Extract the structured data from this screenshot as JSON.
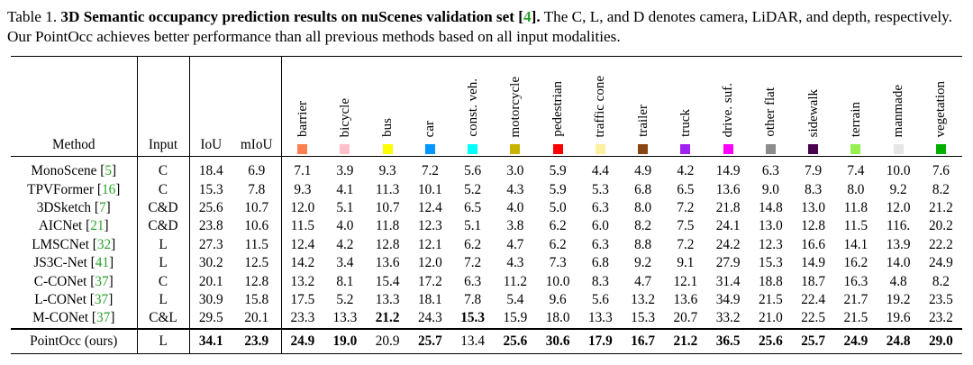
{
  "caption": {
    "prefix": "Table 1. ",
    "bold": "3D Semantic occupancy prediction results on nuScenes validation set ",
    "bold_cite": "4",
    "rest": " The C, L, and D denotes camera, LiDAR, and depth, respectively. Our PointOcc achieves better performance than all previous methods based on all input modalities."
  },
  "headers": {
    "method": "Method",
    "input": "Input",
    "iou": "IoU",
    "miou": "mIoU"
  },
  "classes": [
    {
      "name": "barrier",
      "color": "#ff7f50"
    },
    {
      "name": "bicycle",
      "color": "#ffc0cb"
    },
    {
      "name": "bus",
      "color": "#ffff00"
    },
    {
      "name": "car",
      "color": "#0096ff"
    },
    {
      "name": "const. veh.",
      "color": "#00ffff"
    },
    {
      "name": "motorcycle",
      "color": "#c8b400"
    },
    {
      "name": "pedestrian",
      "color": "#ff0000"
    },
    {
      "name": "traffic cone",
      "color": "#fff0a0"
    },
    {
      "name": "trailer",
      "color": "#8b4513"
    },
    {
      "name": "truck",
      "color": "#a020f0"
    },
    {
      "name": "drive. suf.",
      "color": "#ff00ff"
    },
    {
      "name": "other flat",
      "color": "#8c8c8c"
    },
    {
      "name": "sidewalk",
      "color": "#4b0050"
    },
    {
      "name": "terrain",
      "color": "#96f050"
    },
    {
      "name": "manmade",
      "color": "#e6e6e6"
    },
    {
      "name": "vegetation",
      "color": "#00af00"
    }
  ],
  "rows": [
    {
      "method": "MonoScene",
      "cite": "5",
      "input": "C",
      "vals": [
        "18.4",
        "6.9",
        "7.1",
        "3.9",
        "9.3",
        "7.2",
        "5.6",
        "3.0",
        "5.9",
        "4.4",
        "4.9",
        "4.2",
        "14.9",
        "6.3",
        "7.9",
        "7.4",
        "10.0",
        "7.6"
      ],
      "bold": []
    },
    {
      "method": "TPVFormer",
      "cite": "16",
      "input": "C",
      "vals": [
        "15.3",
        "7.8",
        "9.3",
        "4.1",
        "11.3",
        "10.1",
        "5.2",
        "4.3",
        "5.9",
        "5.3",
        "6.8",
        "6.5",
        "13.6",
        "9.0",
        "8.3",
        "8.0",
        "9.2",
        "8.2"
      ],
      "bold": []
    },
    {
      "method": "3DSketch",
      "cite": "7",
      "input": "C&D",
      "vals": [
        "25.6",
        "10.7",
        "12.0",
        "5.1",
        "10.7",
        "12.4",
        "6.5",
        "4.0",
        "5.0",
        "6.3",
        "8.0",
        "7.2",
        "21.8",
        "14.8",
        "13.0",
        "11.8",
        "12.0",
        "21.2"
      ],
      "bold": []
    },
    {
      "method": "AICNet",
      "cite": "21",
      "input": "C&D",
      "vals": [
        "23.8",
        "10.6",
        "11.5",
        "4.0",
        "11.8",
        "12.3",
        "5.1",
        "3.8",
        "6.2",
        "6.0",
        "8.2",
        "7.5",
        "24.1",
        "13.0",
        "12.8",
        "11.5",
        "116.",
        "20.2"
      ],
      "bold": []
    },
    {
      "method": "LMSCNet",
      "cite": "32",
      "input": "L",
      "vals": [
        "27.3",
        "11.5",
        "12.4",
        "4.2",
        "12.8",
        "12.1",
        "6.2",
        "4.7",
        "6.2",
        "6.3",
        "8.8",
        "7.2",
        "24.2",
        "12.3",
        "16.6",
        "14.1",
        "13.9",
        "22.2"
      ],
      "bold": []
    },
    {
      "method": "JS3C-Net",
      "cite": "41",
      "input": "L",
      "vals": [
        "30.2",
        "12.5",
        "14.2",
        "3.4",
        "13.6",
        "12.0",
        "7.2",
        "4.3",
        "7.3",
        "6.8",
        "9.2",
        "9.1",
        "27.9",
        "15.3",
        "14.9",
        "16.2",
        "14.0",
        "24.9"
      ],
      "bold": []
    },
    {
      "method": "C-CONet",
      "cite": "37",
      "input": "C",
      "vals": [
        "20.1",
        "12.8",
        "13.2",
        "8.1",
        "15.4",
        "17.2",
        "6.3",
        "11.2",
        "10.0",
        "8.3",
        "4.7",
        "12.1",
        "31.4",
        "18.8",
        "18.7",
        "16.3",
        "4.8",
        "8.2"
      ],
      "bold": []
    },
    {
      "method": "L-CONet",
      "cite": "37",
      "input": "L",
      "vals": [
        "30.9",
        "15.8",
        "17.5",
        "5.2",
        "13.3",
        "18.1",
        "7.8",
        "5.4",
        "9.6",
        "5.6",
        "13.2",
        "13.6",
        "34.9",
        "21.5",
        "22.4",
        "21.7",
        "19.2",
        "23.5"
      ],
      "bold": []
    },
    {
      "method": "M-CONet",
      "cite": "37",
      "input": "C&L",
      "vals": [
        "29.5",
        "20.1",
        "23.3",
        "13.3",
        "21.2",
        "24.3",
        "15.3",
        "15.9",
        "18.0",
        "13.3",
        "15.3",
        "20.7",
        "33.2",
        "21.0",
        "22.5",
        "21.5",
        "19.6",
        "23.2"
      ],
      "bold": [
        4,
        6
      ]
    }
  ],
  "ours": {
    "method": "PointOcc (ours)",
    "input": "L",
    "vals": [
      "34.1",
      "23.9",
      "24.9",
      "19.0",
      "20.9",
      "25.7",
      "13.4",
      "25.6",
      "30.6",
      "17.9",
      "16.7",
      "21.2",
      "36.5",
      "25.6",
      "25.7",
      "24.9",
      "24.8",
      "29.0"
    ],
    "bold": [
      0,
      1,
      2,
      3,
      5,
      7,
      8,
      9,
      10,
      11,
      12,
      13,
      14,
      15,
      16,
      17
    ]
  }
}
